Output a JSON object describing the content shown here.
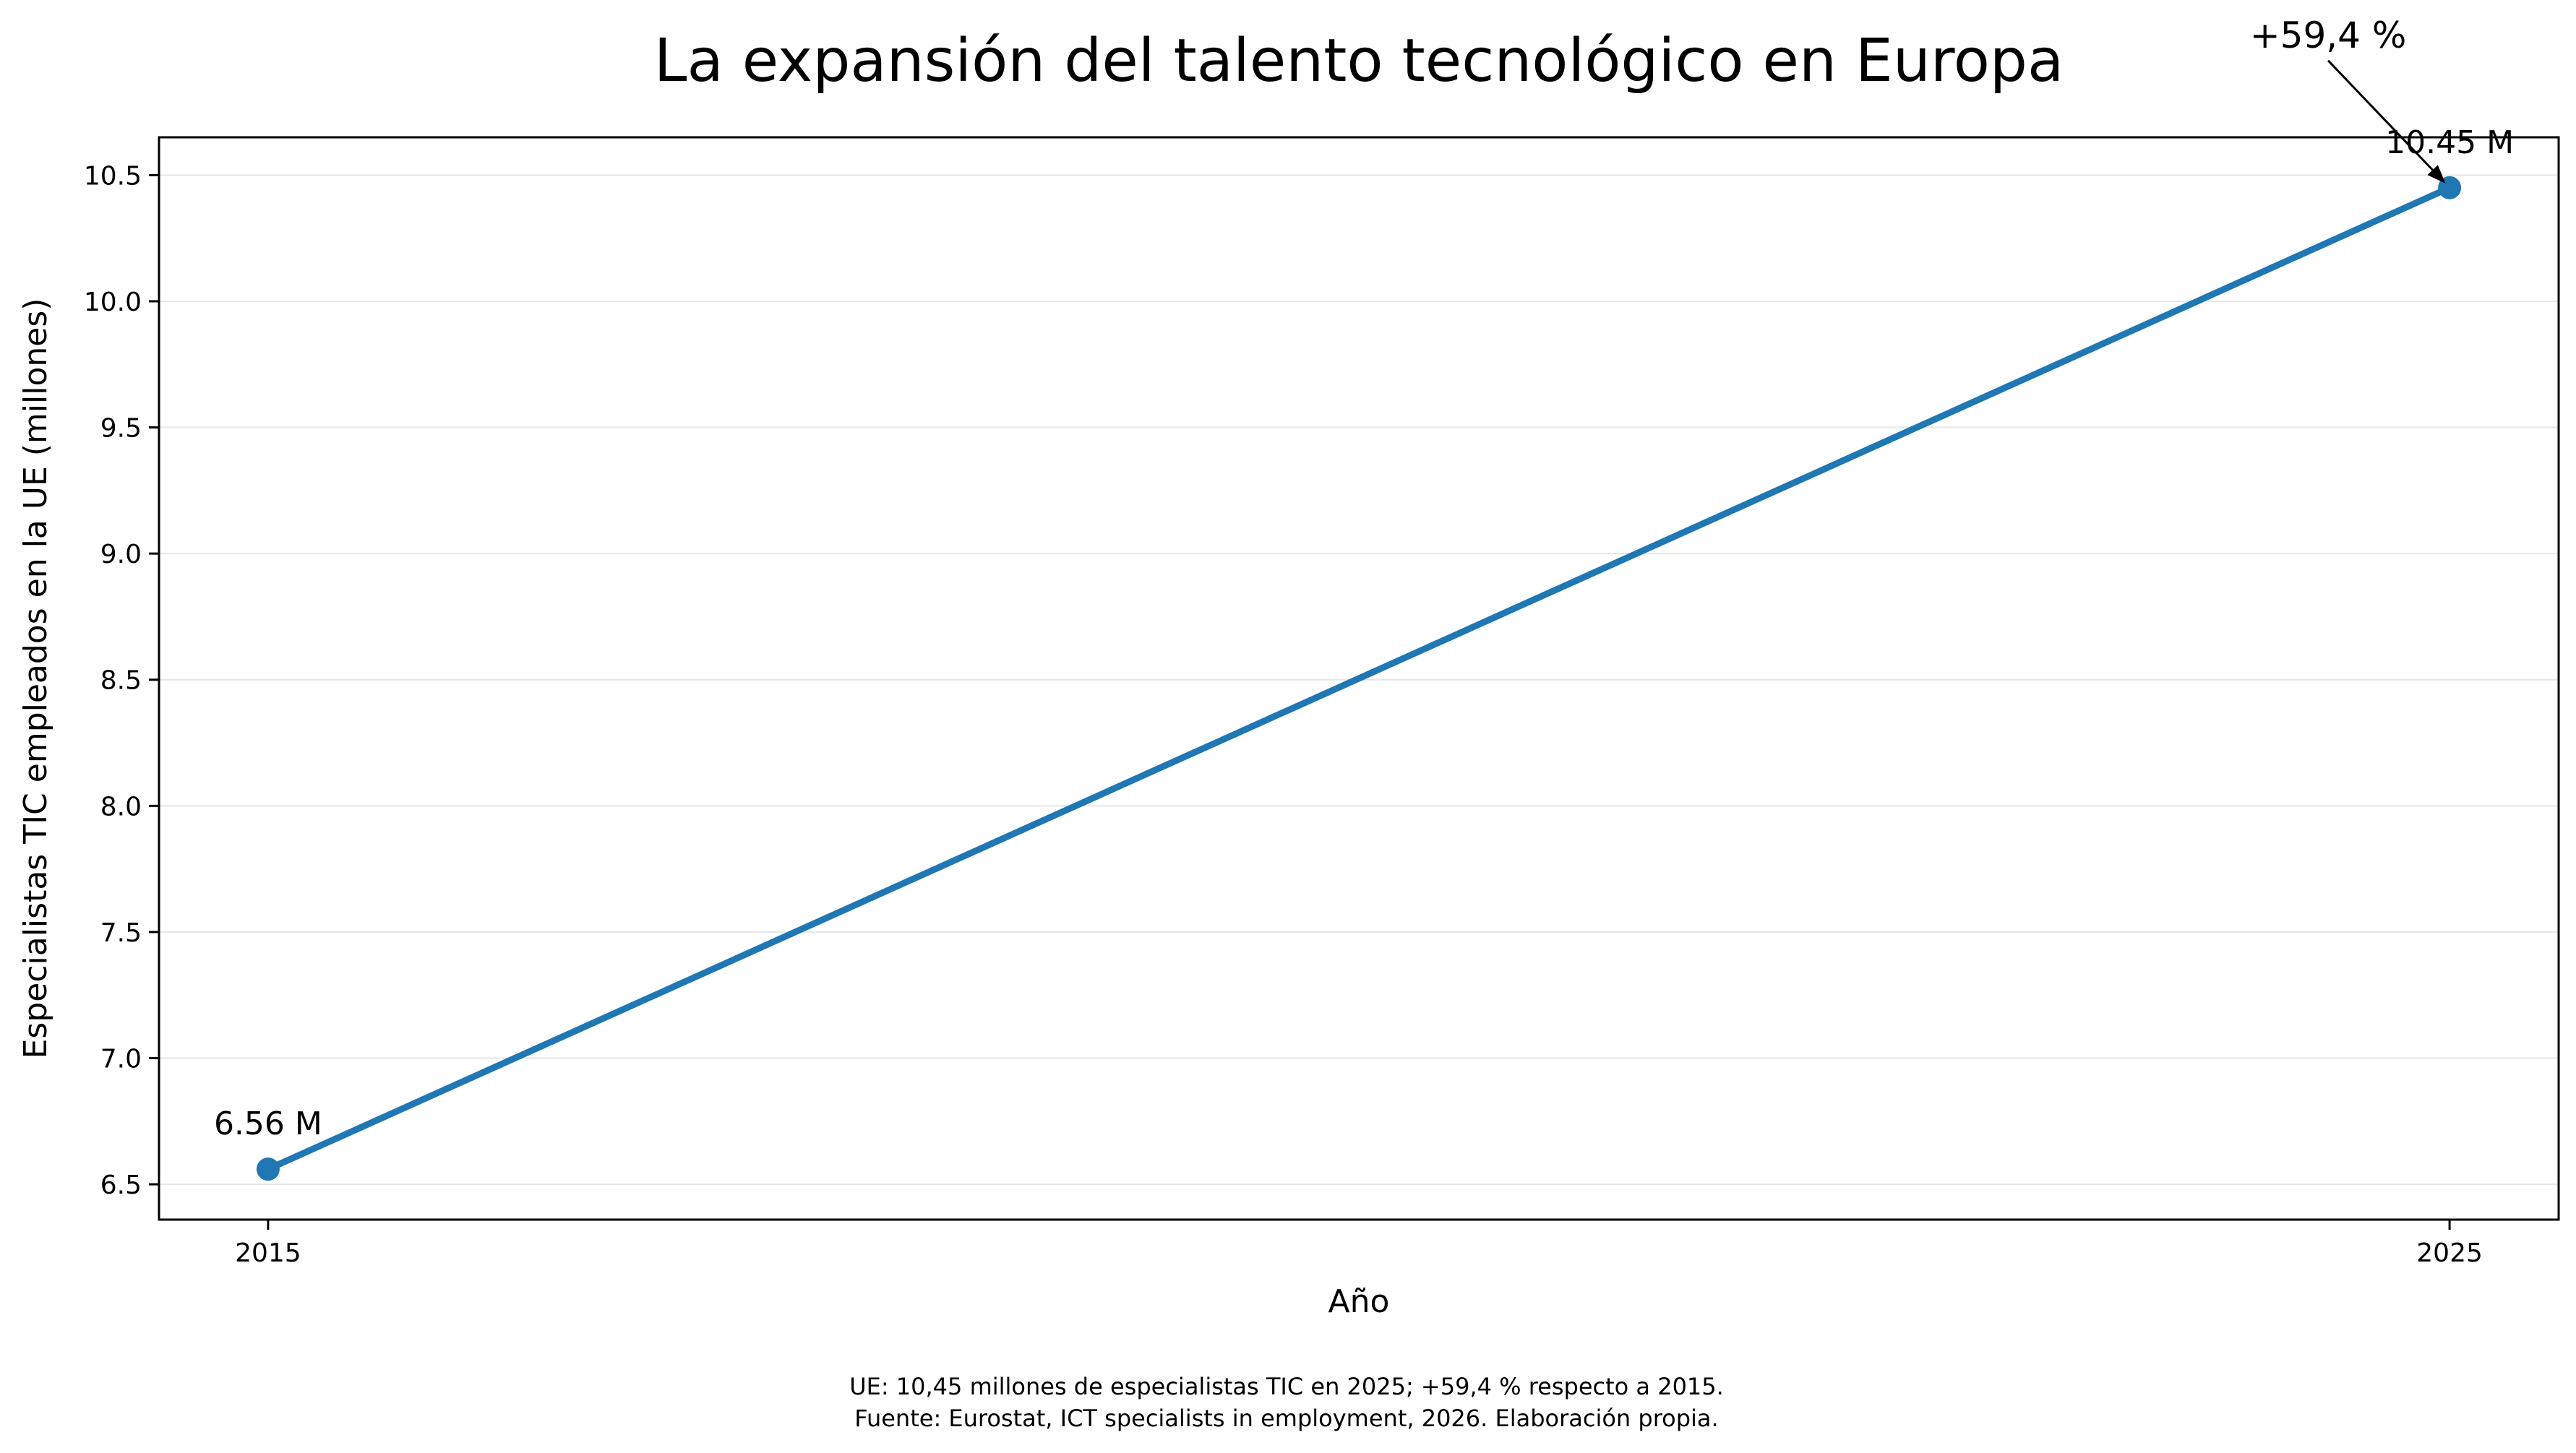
{
  "chart_data": {
    "type": "line",
    "title": "La expansión del talento tecnológico en Europa",
    "xlabel": "Año",
    "ylabel": "Especialistas TIC empleados en la UE (millones)",
    "x": [
      2015,
      2025
    ],
    "x_tick_labels": [
      "2015",
      "2025"
    ],
    "xlim": [
      2014.5,
      2025.5
    ],
    "series": [
      {
        "values": [
          6.56,
          10.45
        ],
        "color": "#1f77b4"
      }
    ],
    "data_labels": [
      "6.56 M",
      "10.45 M"
    ],
    "ylim": [
      6.36,
      10.65
    ],
    "y_ticks": [
      6.5,
      7.0,
      7.5,
      8.0,
      8.5,
      9.0,
      9.5,
      10.0,
      10.5
    ],
    "y_tick_labels": [
      "6.5",
      "7.0",
      "7.5",
      "8.0",
      "8.5",
      "9.0",
      "9.5",
      "10.0",
      "10.5"
    ],
    "grid": "horizontal",
    "annotation": {
      "text": "+59,4 %",
      "target_x": 2025,
      "target_y": 10.45
    },
    "footnote": [
      "UE: 10,45 millones de especialistas TIC en 2025; +59,4 % respecto a 2015.",
      "Fuente: Eurostat, ICT specialists in employment, 2026. Elaboración propia."
    ]
  }
}
